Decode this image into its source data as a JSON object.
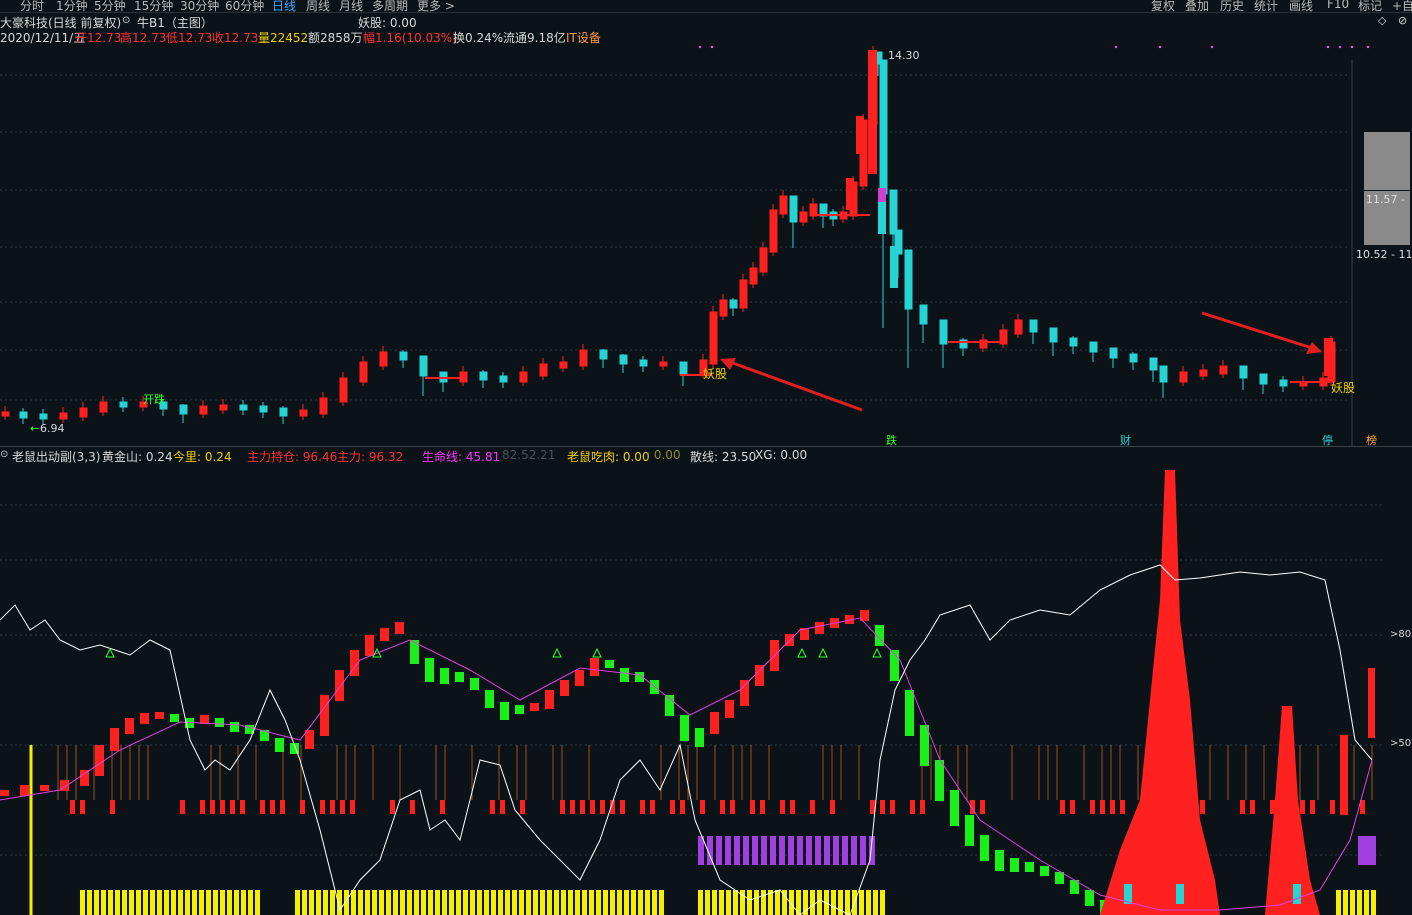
{
  "toolbar": {
    "tabs": [
      "分时",
      "1分钟",
      "5分钟",
      "15分钟",
      "30分钟",
      "60分钟",
      "日线",
      "周线",
      "月线",
      "多周期",
      "更多 >"
    ],
    "active_tab": "日线",
    "right_buttons": [
      "复权",
      "叠加",
      "历史",
      "统计",
      "画线",
      "F10",
      "标记",
      "+自"
    ]
  },
  "header": {
    "stock": "大豪科技(日线 前复权)",
    "indicator": "牛B1（主图）",
    "yaogu": "妖股: 0.00",
    "date": "2020/12/11/五",
    "open": "开12.73",
    "high": "高12.73",
    "low": "低12.73",
    "close": "收12.73",
    "volume": "量22452",
    "amount": "额2858万",
    "change": "幅1.16(10.03%)",
    "turnover": "换0.24%",
    "float": "流通9.18亿",
    "sector": "IT设备"
  },
  "main_chart": {
    "high_label": "14.30",
    "low_label": "6.94",
    "kaidie_label": "开跌",
    "yaogu_label_1": "妖股",
    "yaogu_label_2": "妖股",
    "right_price_1": "11.57 -",
    "right_price_2": "10.52 - 11",
    "bottom_tags": [
      "跌",
      "财",
      "停",
      "榜"
    ]
  },
  "sub_chart": {
    "title": "老鼠出动副(3,3)",
    "huangjinshan": "黄金山: 0.24",
    "jinli": "今里: 0.24",
    "zhuli_chicang": "主力持仓: 96.46",
    "zhuli": "主力: 96.32",
    "shengmingxian": "生命线: 45.81",
    "gray_value": "82.52.21",
    "laoshu_chirou": "老鼠吃肉: 0.00",
    "laoshu_val2": ": 0.00",
    "sanxian": "散线: 23.50",
    "xg": "XG: 0.00",
    "axis_80": ">80",
    "axis_50": ">50"
  },
  "colors": {
    "up": "#ff2020",
    "down": "#27d3d3",
    "green_bar": "#19f019",
    "purple_bar": "#a040e0",
    "yellow_bar": "#f5f000",
    "white_line": "#ffffff",
    "magenta_line": "#e040e0"
  }
}
